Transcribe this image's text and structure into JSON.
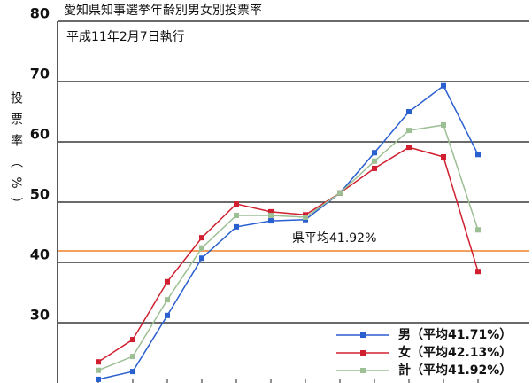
{
  "chart_data": {
    "type": "line",
    "title": "愛知県知事選挙年齢別男女別投票率",
    "subtitle": "平成11年2月7日執行",
    "y_label": "投票率（%）",
    "categories": [
      null,
      null,
      null,
      null,
      null,
      null,
      null,
      null,
      null,
      null,
      null,
      null
    ],
    "series": [
      {
        "name": "男（平均41.71%）",
        "color": "#2a5fd0",
        "values": [
          20.6,
          21.9,
          31.2,
          40.7,
          45.9,
          46.9,
          47.1,
          51.5,
          58.2,
          65.0,
          69.3,
          57.9
        ]
      },
      {
        "name": "女（平均42.13%）",
        "color": "#d02030",
        "values": [
          23.5,
          27.2,
          36.8,
          44.1,
          49.7,
          48.4,
          47.9,
          51.5,
          55.6,
          59.1,
          57.5,
          38.5
        ]
      },
      {
        "name": "計（平均41.92%）",
        "color": "#9cbf94",
        "values": [
          22.1,
          24.4,
          33.8,
          42.4,
          47.8,
          47.8,
          47.5,
          51.5,
          56.8,
          61.9,
          62.8,
          45.4
        ]
      }
    ],
    "average": {
      "value": 41.92,
      "label": "県平均41.92%",
      "color": "#f4a060"
    },
    "ylim": [
      20,
      80
    ],
    "yticks": [
      30,
      40,
      50,
      60,
      70,
      80
    ],
    "grid": true
  }
}
